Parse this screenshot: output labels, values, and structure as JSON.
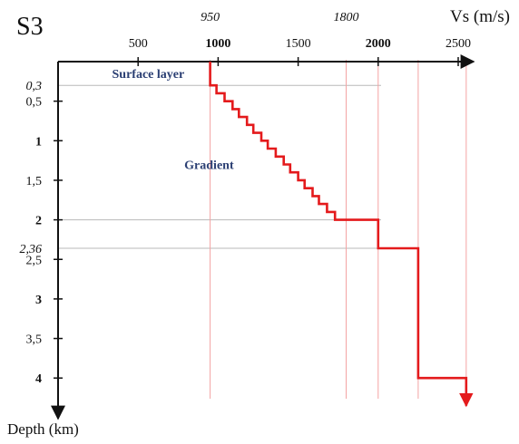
{
  "chart_data": {
    "type": "line",
    "title": "S3",
    "xlabel": "Vs (m/s)",
    "ylabel": "Depth (km)",
    "x_axis_position": "top",
    "y_axis_inverted": true,
    "xlim": [
      0,
      2650
    ],
    "ylim": [
      0,
      4.5
    ],
    "x_ticks": [
      {
        "value": 500,
        "label": "500",
        "bold": false
      },
      {
        "value": 1000,
        "label": "1000",
        "bold": true
      },
      {
        "value": 1500,
        "label": "1500",
        "bold": false
      },
      {
        "value": 2000,
        "label": "2000",
        "bold": true
      },
      {
        "value": 2500,
        "label": "2500",
        "bold": false
      }
    ],
    "x_annotations": [
      {
        "value": 950,
        "label": "950"
      },
      {
        "value": 1800,
        "label": "1800"
      }
    ],
    "y_ticks": [
      {
        "value": 0.5,
        "label": "0,5",
        "bold": false
      },
      {
        "value": 1,
        "label": "1",
        "bold": true
      },
      {
        "value": 1.5,
        "label": "1,5",
        "bold": false
      },
      {
        "value": 2,
        "label": "2",
        "bold": true
      },
      {
        "value": 2.5,
        "label": "2,5",
        "bold": false
      },
      {
        "value": 3,
        "label": "3",
        "bold": true
      },
      {
        "value": 3.5,
        "label": "3,5",
        "bold": false
      },
      {
        "value": 4,
        "label": "4",
        "bold": true
      }
    ],
    "y_annotations": [
      {
        "value": 0.3,
        "label": "0,3"
      },
      {
        "value": 2.36,
        "label": "2,36"
      }
    ],
    "guides": {
      "horizontal_depths": [
        0.3,
        2,
        2.36
      ],
      "vertical_velocities": [
        950,
        1800,
        2000,
        2250,
        2550
      ]
    },
    "layer_labels": [
      {
        "text": "Surface layer",
        "x": 620,
        "y": 0.15
      },
      {
        "text": "Gradient",
        "x": 1000,
        "y": 1.3
      }
    ],
    "series": [
      {
        "color": "#e41a1c",
        "points": [
          [
            950,
            0.0
          ],
          [
            950,
            0.3
          ],
          [
            990,
            0.3
          ],
          [
            990,
            0.4
          ],
          [
            1040,
            0.4
          ],
          [
            1040,
            0.5
          ],
          [
            1090,
            0.5
          ],
          [
            1090,
            0.6
          ],
          [
            1130,
            0.6
          ],
          [
            1130,
            0.7
          ],
          [
            1180,
            0.7
          ],
          [
            1180,
            0.8
          ],
          [
            1220,
            0.8
          ],
          [
            1220,
            0.9
          ],
          [
            1270,
            0.9
          ],
          [
            1270,
            1.0
          ],
          [
            1310,
            1.0
          ],
          [
            1310,
            1.1
          ],
          [
            1360,
            1.1
          ],
          [
            1360,
            1.2
          ],
          [
            1410,
            1.2
          ],
          [
            1410,
            1.3
          ],
          [
            1450,
            1.3
          ],
          [
            1450,
            1.4
          ],
          [
            1500,
            1.4
          ],
          [
            1500,
            1.5
          ],
          [
            1540,
            1.5
          ],
          [
            1540,
            1.6
          ],
          [
            1590,
            1.6
          ],
          [
            1590,
            1.7
          ],
          [
            1630,
            1.7
          ],
          [
            1630,
            1.8
          ],
          [
            1680,
            1.8
          ],
          [
            1680,
            1.9
          ],
          [
            1730,
            1.9
          ],
          [
            1730,
            2.0
          ],
          [
            2000,
            2.0
          ],
          [
            2000,
            2.36
          ],
          [
            2250,
            2.36
          ],
          [
            2250,
            4.0
          ],
          [
            2550,
            4.0
          ],
          [
            2550,
            4.35
          ]
        ],
        "arrow_at_end": true
      }
    ],
    "grid": false
  }
}
